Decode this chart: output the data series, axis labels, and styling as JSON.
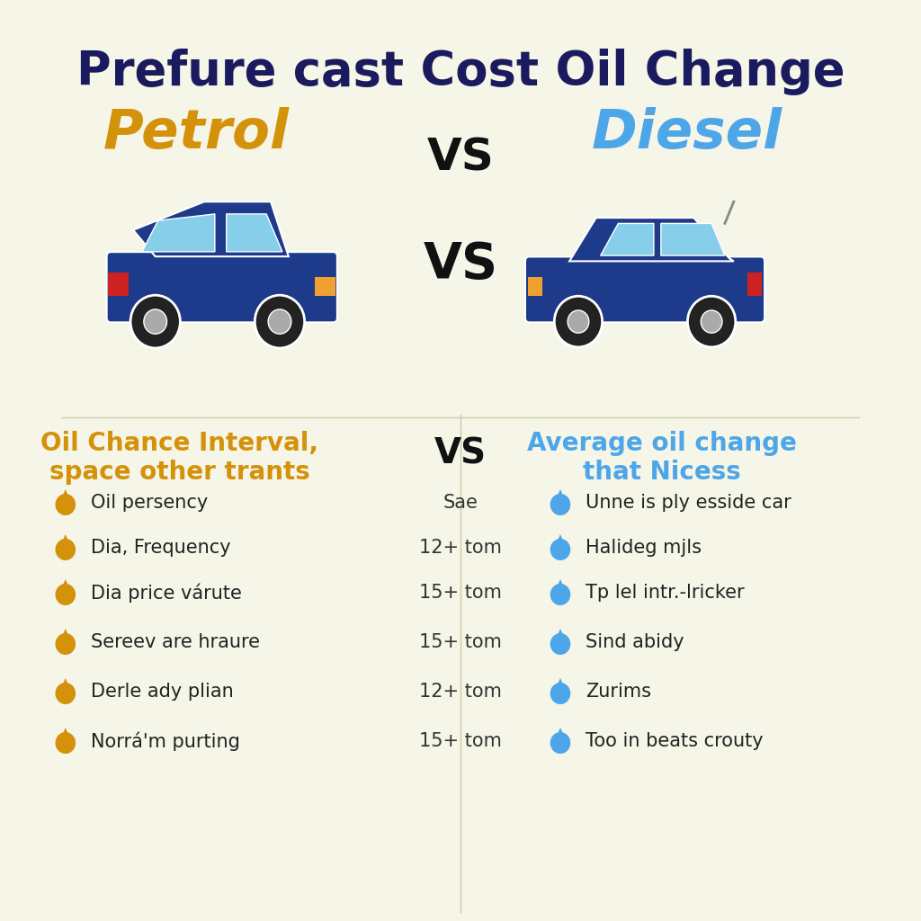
{
  "title": "Prefure cast Cost Oil Change",
  "title_color": "#1a1a5e",
  "title_fontsize": 38,
  "bg_color": "#f5f5e8",
  "petrol_label": "Petrol",
  "petrol_color": "#d4920a",
  "diesel_label": "Diesel",
  "diesel_color": "#4da6e8",
  "vs_color": "#111111",
  "vs_fontsize": 36,
  "left_header": "Oil Chance Interval,\nspace other trants",
  "left_header_color": "#d4920a",
  "right_header": "Average oil change\nthat Nicess",
  "right_header_color": "#4da6e8",
  "header_fontsize": 20,
  "middle_values": [
    "Sae",
    "12+ tom",
    "15+ tom",
    "15+ tom",
    "12+ tom",
    "15+ tom"
  ],
  "left_items": [
    "Oil persency",
    "Dia, Frequency",
    "Dia price várute",
    "Sereev are hraure",
    "Derle ady plian",
    "Norrá'm purting"
  ],
  "right_items": [
    "Unne is ply esside car",
    "Halideg mjls",
    "Tp lel intr.-lricker",
    "Sind abidy",
    "Zurims",
    "Too in beats crouty"
  ],
  "item_fontsize": 15,
  "middle_fontsize": 15,
  "car_body_color": "#1e3a8a",
  "car_window_color": "#87ceeb",
  "car_wheel_color": "#222222",
  "car_wheel_hub_color": "#aaaaaa"
}
